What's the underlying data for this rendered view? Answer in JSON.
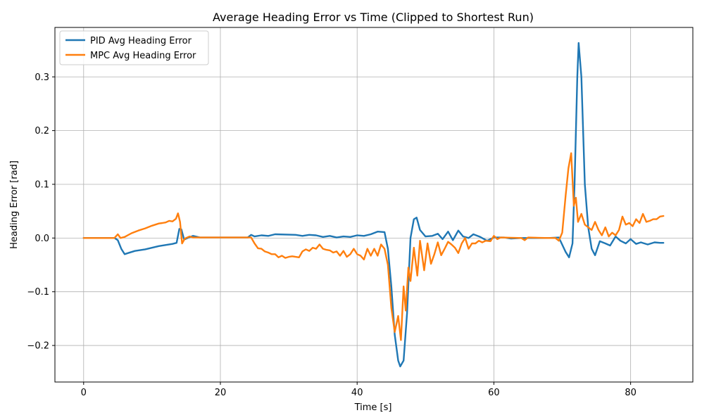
{
  "chart_data": {
    "type": "line",
    "title": "Average Heading Error vs Time (Clipped to Shortest Run)",
    "xlabel": "Time [s]",
    "ylabel": "Heading Error [rad]",
    "xlim": [
      -4.2,
      89.1
    ],
    "ylim": [
      -0.268,
      0.392
    ],
    "xticks": [
      0,
      20,
      40,
      60,
      80
    ],
    "yticks": [
      -0.2,
      -0.1,
      0.0,
      0.1,
      0.2,
      0.3
    ],
    "ytick_labels": [
      "−0.2",
      "−0.1",
      "0.0",
      "0.1",
      "0.2",
      "0.3"
    ],
    "grid": true,
    "legend_position": "top-left",
    "series": [
      {
        "name": "PID Avg Heading Error",
        "color": "#1f77b4",
        "points": [
          [
            0,
            0.0
          ],
          [
            4.5,
            0.0
          ],
          [
            5.0,
            -0.004
          ],
          [
            5.5,
            -0.02
          ],
          [
            6.0,
            -0.03
          ],
          [
            6.5,
            -0.028
          ],
          [
            7.5,
            -0.024
          ],
          [
            9.0,
            -0.021
          ],
          [
            11.0,
            -0.015
          ],
          [
            13.0,
            -0.011
          ],
          [
            13.6,
            -0.009
          ],
          [
            14.0,
            0.017
          ],
          [
            14.3,
            0.016
          ],
          [
            14.7,
            -0.003
          ],
          [
            15.2,
            0.0
          ],
          [
            16.0,
            0.004
          ],
          [
            17.0,
            0.001
          ],
          [
            20.0,
            0.001
          ],
          [
            24.0,
            0.001
          ],
          [
            24.5,
            0.006
          ],
          [
            25.0,
            0.003
          ],
          [
            26.0,
            0.005
          ],
          [
            27.0,
            0.004
          ],
          [
            28.0,
            0.007
          ],
          [
            31.0,
            0.006
          ],
          [
            32.0,
            0.004
          ],
          [
            33.0,
            0.006
          ],
          [
            34.0,
            0.005
          ],
          [
            35.0,
            0.002
          ],
          [
            36.0,
            0.004
          ],
          [
            37.0,
            0.001
          ],
          [
            38.0,
            0.003
          ],
          [
            39.0,
            0.002
          ],
          [
            40.0,
            0.005
          ],
          [
            41.0,
            0.004
          ],
          [
            42.0,
            0.007
          ],
          [
            43.0,
            0.012
          ],
          [
            44.0,
            0.011
          ],
          [
            44.5,
            -0.02
          ],
          [
            45.0,
            -0.09
          ],
          [
            45.5,
            -0.18
          ],
          [
            46.0,
            -0.228
          ],
          [
            46.3,
            -0.239
          ],
          [
            46.8,
            -0.228
          ],
          [
            47.3,
            -0.14
          ],
          [
            47.8,
            0.0
          ],
          [
            48.3,
            0.035
          ],
          [
            48.7,
            0.038
          ],
          [
            49.2,
            0.015
          ],
          [
            50.0,
            0.003
          ],
          [
            51.0,
            0.004
          ],
          [
            51.8,
            0.008
          ],
          [
            52.5,
            -0.002
          ],
          [
            53.3,
            0.012
          ],
          [
            54.0,
            -0.004
          ],
          [
            54.8,
            0.014
          ],
          [
            55.5,
            0.003
          ],
          [
            56.3,
            0.0
          ],
          [
            57.0,
            0.007
          ],
          [
            58.0,
            0.002
          ],
          [
            59.0,
            -0.005
          ],
          [
            60.0,
            0.001
          ],
          [
            61.5,
            0.001
          ],
          [
            62.5,
            -0.001
          ],
          [
            64.0,
            0.0
          ],
          [
            68.0,
            0.0
          ],
          [
            69.5,
            0.001
          ],
          [
            70.5,
            -0.026
          ],
          [
            71.0,
            -0.036
          ],
          [
            71.5,
            -0.01
          ],
          [
            71.8,
            0.1
          ],
          [
            72.2,
            0.3
          ],
          [
            72.4,
            0.363
          ],
          [
            72.8,
            0.3
          ],
          [
            73.3,
            0.1
          ],
          [
            73.8,
            0.02
          ],
          [
            74.3,
            -0.02
          ],
          [
            74.8,
            -0.032
          ],
          [
            75.5,
            -0.006
          ],
          [
            76.3,
            -0.01
          ],
          [
            77.0,
            -0.014
          ],
          [
            77.8,
            0.003
          ],
          [
            78.5,
            -0.005
          ],
          [
            79.3,
            -0.01
          ],
          [
            80.0,
            -0.002
          ],
          [
            80.8,
            -0.011
          ],
          [
            81.5,
            -0.008
          ],
          [
            82.5,
            -0.012
          ],
          [
            83.5,
            -0.008
          ],
          [
            84.3,
            -0.009
          ],
          [
            84.8,
            -0.009
          ]
        ]
      },
      {
        "name": "MPC Avg Heading Error",
        "color": "#ff7f0e",
        "points": [
          [
            0,
            0.0
          ],
          [
            4.5,
            0.0
          ],
          [
            5.0,
            0.007
          ],
          [
            5.4,
            0.0
          ],
          [
            6.0,
            0.002
          ],
          [
            7.0,
            0.009
          ],
          [
            8.0,
            0.014
          ],
          [
            9.0,
            0.018
          ],
          [
            10.0,
            0.023
          ],
          [
            11.0,
            0.027
          ],
          [
            11.5,
            0.028
          ],
          [
            12.0,
            0.029
          ],
          [
            12.5,
            0.032
          ],
          [
            13.0,
            0.031
          ],
          [
            13.5,
            0.036
          ],
          [
            13.8,
            0.046
          ],
          [
            14.1,
            0.03
          ],
          [
            14.4,
            -0.01
          ],
          [
            14.8,
            -0.001
          ],
          [
            15.5,
            0.003
          ],
          [
            16.0,
            0.001
          ],
          [
            20.0,
            0.001
          ],
          [
            24.5,
            0.001
          ],
          [
            25.0,
            -0.01
          ],
          [
            25.5,
            -0.019
          ],
          [
            26.0,
            -0.02
          ],
          [
            26.5,
            -0.025
          ],
          [
            27.0,
            -0.027
          ],
          [
            27.5,
            -0.03
          ],
          [
            28.0,
            -0.03
          ],
          [
            28.5,
            -0.036
          ],
          [
            29.0,
            -0.033
          ],
          [
            29.5,
            -0.037
          ],
          [
            30.0,
            -0.035
          ],
          [
            30.5,
            -0.034
          ],
          [
            31.0,
            -0.035
          ],
          [
            31.5,
            -0.036
          ],
          [
            32.0,
            -0.025
          ],
          [
            32.5,
            -0.021
          ],
          [
            33.0,
            -0.024
          ],
          [
            33.5,
            -0.018
          ],
          [
            34.0,
            -0.02
          ],
          [
            34.5,
            -0.012
          ],
          [
            35.0,
            -0.02
          ],
          [
            35.5,
            -0.022
          ],
          [
            36.0,
            -0.023
          ],
          [
            36.5,
            -0.027
          ],
          [
            37.0,
            -0.025
          ],
          [
            37.5,
            -0.033
          ],
          [
            38.0,
            -0.024
          ],
          [
            38.5,
            -0.035
          ],
          [
            39.0,
            -0.03
          ],
          [
            39.5,
            -0.02
          ],
          [
            40.0,
            -0.03
          ],
          [
            40.5,
            -0.033
          ],
          [
            41.0,
            -0.04
          ],
          [
            41.5,
            -0.02
          ],
          [
            42.0,
            -0.033
          ],
          [
            42.5,
            -0.02
          ],
          [
            43.0,
            -0.033
          ],
          [
            43.5,
            -0.012
          ],
          [
            44.0,
            -0.02
          ],
          [
            44.5,
            -0.05
          ],
          [
            45.0,
            -0.13
          ],
          [
            45.5,
            -0.175
          ],
          [
            46.0,
            -0.145
          ],
          [
            46.4,
            -0.19
          ],
          [
            46.8,
            -0.09
          ],
          [
            47.1,
            -0.135
          ],
          [
            47.5,
            -0.055
          ],
          [
            47.8,
            -0.08
          ],
          [
            48.3,
            -0.018
          ],
          [
            48.8,
            -0.07
          ],
          [
            49.2,
            -0.005
          ],
          [
            49.8,
            -0.06
          ],
          [
            50.3,
            -0.01
          ],
          [
            50.8,
            -0.048
          ],
          [
            51.3,
            -0.03
          ],
          [
            51.8,
            -0.008
          ],
          [
            52.3,
            -0.032
          ],
          [
            52.8,
            -0.02
          ],
          [
            53.3,
            -0.007
          ],
          [
            53.8,
            -0.012
          ],
          [
            54.3,
            -0.018
          ],
          [
            54.8,
            -0.028
          ],
          [
            55.3,
            -0.01
          ],
          [
            55.8,
            0.0
          ],
          [
            56.3,
            -0.02
          ],
          [
            56.8,
            -0.01
          ],
          [
            57.3,
            -0.01
          ],
          [
            57.8,
            -0.005
          ],
          [
            58.3,
            -0.008
          ],
          [
            58.8,
            -0.005
          ],
          [
            59.5,
            -0.006
          ],
          [
            60.0,
            0.004
          ],
          [
            60.5,
            -0.002
          ],
          [
            61.0,
            0.001
          ],
          [
            64.0,
            0.0
          ],
          [
            64.5,
            -0.004
          ],
          [
            65.0,
            0.001
          ],
          [
            68.0,
            0.0
          ],
          [
            69.0,
            0.0
          ],
          [
            69.5,
            -0.005
          ],
          [
            70.0,
            0.01
          ],
          [
            70.5,
            0.08
          ],
          [
            70.9,
            0.13
          ],
          [
            71.3,
            0.158
          ],
          [
            71.7,
            0.06
          ],
          [
            72.0,
            0.075
          ],
          [
            72.3,
            0.03
          ],
          [
            72.8,
            0.045
          ],
          [
            73.3,
            0.025
          ],
          [
            73.8,
            0.02
          ],
          [
            74.3,
            0.015
          ],
          [
            74.8,
            0.03
          ],
          [
            75.3,
            0.015
          ],
          [
            75.8,
            0.005
          ],
          [
            76.3,
            0.02
          ],
          [
            76.8,
            0.003
          ],
          [
            77.3,
            0.01
          ],
          [
            77.8,
            0.005
          ],
          [
            78.3,
            0.015
          ],
          [
            78.8,
            0.04
          ],
          [
            79.3,
            0.025
          ],
          [
            79.8,
            0.028
          ],
          [
            80.3,
            0.022
          ],
          [
            80.8,
            0.035
          ],
          [
            81.3,
            0.028
          ],
          [
            81.8,
            0.045
          ],
          [
            82.3,
            0.03
          ],
          [
            82.8,
            0.032
          ],
          [
            83.3,
            0.035
          ],
          [
            83.8,
            0.035
          ],
          [
            84.3,
            0.04
          ],
          [
            84.8,
            0.041
          ]
        ]
      }
    ]
  }
}
